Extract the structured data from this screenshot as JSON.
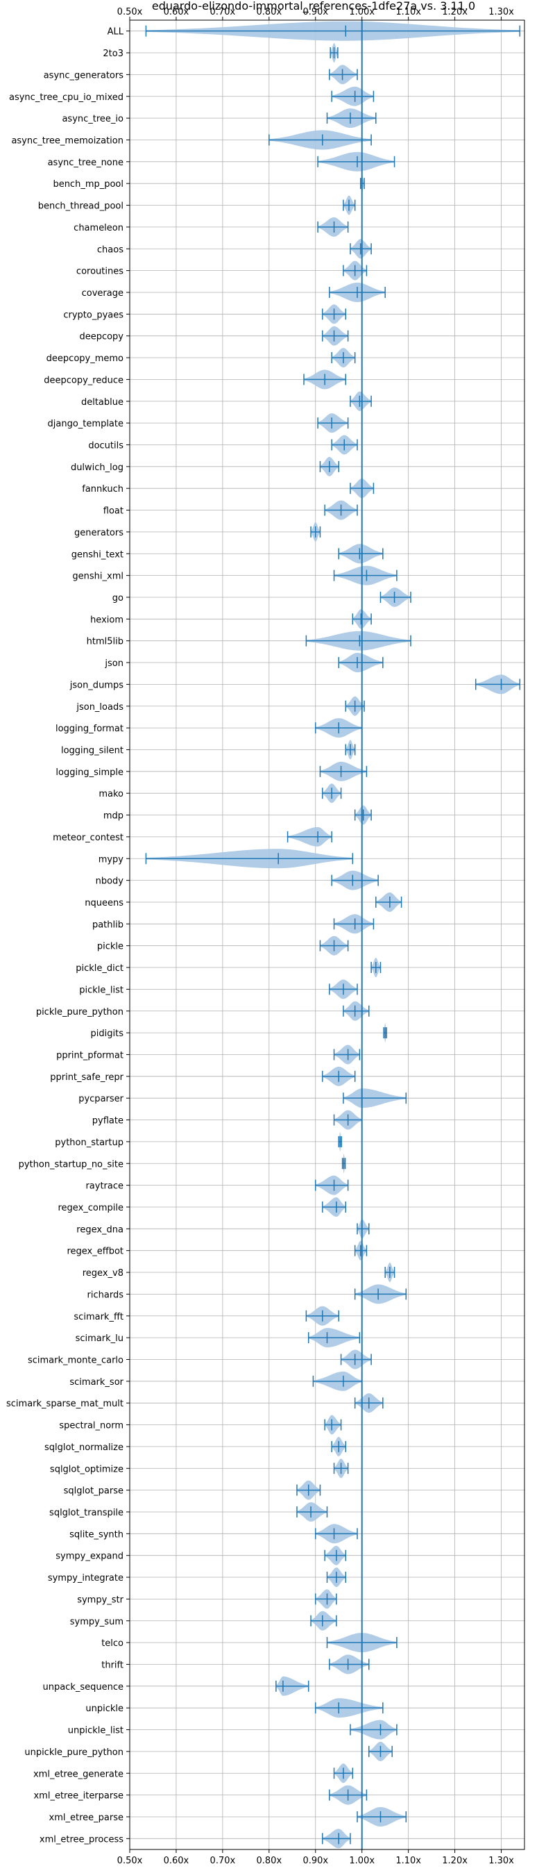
{
  "chart_data": {
    "type": "violin",
    "title": "eduardo-elizondo-immortal_references-1dfe27a vs. 3.11.0",
    "xlabel": "",
    "ylabel": "",
    "xlim": [
      0.5,
      1.35
    ],
    "x_ticks": [
      0.5,
      0.6,
      0.7,
      0.8,
      0.9,
      1.0,
      1.1,
      1.2,
      1.3
    ],
    "x_tick_labels": [
      "0.50x",
      "0.60x",
      "0.70x",
      "0.80x",
      "0.90x",
      "1.00x",
      "1.10x",
      "1.20x",
      "1.30x"
    ],
    "reference_line": 1.0,
    "grid": true,
    "colors": {
      "violin_fill": "#a7c6e3",
      "whisker": "#1f77b4",
      "reference_line": "#1f77b4",
      "grid": "#b0b0b0"
    },
    "series": [
      {
        "name": "ALL",
        "min": 0.535,
        "max": 1.34,
        "median": 0.965
      },
      {
        "name": "2to3",
        "min": 0.932,
        "max": 0.948,
        "median": 0.94
      },
      {
        "name": "async_generators",
        "min": 0.93,
        "max": 0.99,
        "median": 0.958
      },
      {
        "name": "async_tree_cpu_io_mixed",
        "min": 0.935,
        "max": 1.025,
        "median": 0.985
      },
      {
        "name": "async_tree_io",
        "min": 0.925,
        "max": 1.03,
        "median": 0.975
      },
      {
        "name": "async_tree_memoization",
        "min": 0.8,
        "max": 1.02,
        "median": 0.915
      },
      {
        "name": "async_tree_none",
        "min": 0.905,
        "max": 1.07,
        "median": 0.99
      },
      {
        "name": "bench_mp_pool",
        "min": 0.997,
        "max": 1.005,
        "median": 1.0
      },
      {
        "name": "bench_thread_pool",
        "min": 0.96,
        "max": 0.985,
        "median": 0.972
      },
      {
        "name": "chameleon",
        "min": 0.905,
        "max": 0.97,
        "median": 0.94
      },
      {
        "name": "chaos",
        "min": 0.975,
        "max": 1.02,
        "median": 0.997
      },
      {
        "name": "coroutines",
        "min": 0.96,
        "max": 1.01,
        "median": 0.985
      },
      {
        "name": "coverage",
        "min": 0.93,
        "max": 1.05,
        "median": 0.99
      },
      {
        "name": "crypto_pyaes",
        "min": 0.915,
        "max": 0.965,
        "median": 0.94
      },
      {
        "name": "deepcopy",
        "min": 0.915,
        "max": 0.97,
        "median": 0.94
      },
      {
        "name": "deepcopy_memo",
        "min": 0.935,
        "max": 0.985,
        "median": 0.96
      },
      {
        "name": "deepcopy_reduce",
        "min": 0.875,
        "max": 0.965,
        "median": 0.92
      },
      {
        "name": "deltablue",
        "min": 0.975,
        "max": 1.02,
        "median": 0.995
      },
      {
        "name": "django_template",
        "min": 0.905,
        "max": 0.97,
        "median": 0.935
      },
      {
        "name": "docutils",
        "min": 0.935,
        "max": 0.99,
        "median": 0.962
      },
      {
        "name": "dulwich_log",
        "min": 0.91,
        "max": 0.95,
        "median": 0.93
      },
      {
        "name": "fannkuch",
        "min": 0.975,
        "max": 1.025,
        "median": 1.0
      },
      {
        "name": "float",
        "min": 0.92,
        "max": 0.99,
        "median": 0.955
      },
      {
        "name": "generators",
        "min": 0.89,
        "max": 0.91,
        "median": 0.9
      },
      {
        "name": "genshi_text",
        "min": 0.95,
        "max": 1.045,
        "median": 0.995
      },
      {
        "name": "genshi_xml",
        "min": 0.94,
        "max": 1.075,
        "median": 1.01
      },
      {
        "name": "go",
        "min": 1.04,
        "max": 1.105,
        "median": 1.07
      },
      {
        "name": "hexiom",
        "min": 0.98,
        "max": 1.02,
        "median": 0.998
      },
      {
        "name": "html5lib",
        "min": 0.88,
        "max": 1.105,
        "median": 0.995
      },
      {
        "name": "json",
        "min": 0.95,
        "max": 1.045,
        "median": 0.99
      },
      {
        "name": "json_dumps",
        "min": 1.245,
        "max": 1.34,
        "median": 1.3
      },
      {
        "name": "json_loads",
        "min": 0.965,
        "max": 1.005,
        "median": 0.985
      },
      {
        "name": "logging_format",
        "min": 0.9,
        "max": 1.0,
        "median": 0.95
      },
      {
        "name": "logging_silent",
        "min": 0.965,
        "max": 0.985,
        "median": 0.975
      },
      {
        "name": "logging_simple",
        "min": 0.91,
        "max": 1.01,
        "median": 0.955
      },
      {
        "name": "mako",
        "min": 0.915,
        "max": 0.955,
        "median": 0.935
      },
      {
        "name": "mdp",
        "min": 0.985,
        "max": 1.02,
        "median": 1.003
      },
      {
        "name": "meteor_contest",
        "min": 0.84,
        "max": 0.935,
        "median": 0.905
      },
      {
        "name": "mypy",
        "min": 0.535,
        "max": 0.98,
        "median": 0.82
      },
      {
        "name": "nbody",
        "min": 0.935,
        "max": 1.035,
        "median": 0.98
      },
      {
        "name": "nqueens",
        "min": 1.03,
        "max": 1.085,
        "median": 1.06
      },
      {
        "name": "pathlib",
        "min": 0.94,
        "max": 1.025,
        "median": 0.985
      },
      {
        "name": "pickle",
        "min": 0.91,
        "max": 0.97,
        "median": 0.94
      },
      {
        "name": "pickle_dict",
        "min": 1.02,
        "max": 1.04,
        "median": 1.03
      },
      {
        "name": "pickle_list",
        "min": 0.93,
        "max": 0.99,
        "median": 0.96
      },
      {
        "name": "pickle_pure_python",
        "min": 0.96,
        "max": 1.015,
        "median": 0.985
      },
      {
        "name": "pidigits",
        "min": 1.047,
        "max": 1.053,
        "median": 1.05
      },
      {
        "name": "pprint_pformat",
        "min": 0.94,
        "max": 0.995,
        "median": 0.97
      },
      {
        "name": "pprint_safe_repr",
        "min": 0.915,
        "max": 0.985,
        "median": 0.95
      },
      {
        "name": "pycparser",
        "min": 0.96,
        "max": 1.095,
        "median": 1.0
      },
      {
        "name": "pyflate",
        "min": 0.94,
        "max": 1.0,
        "median": 0.97
      },
      {
        "name": "python_startup",
        "min": 0.95,
        "max": 0.956,
        "median": 0.953
      },
      {
        "name": "python_startup_no_site",
        "min": 0.958,
        "max": 0.964,
        "median": 0.961
      },
      {
        "name": "raytrace",
        "min": 0.9,
        "max": 0.97,
        "median": 0.94
      },
      {
        "name": "regex_compile",
        "min": 0.915,
        "max": 0.965,
        "median": 0.945
      },
      {
        "name": "regex_dna",
        "min": 0.99,
        "max": 1.015,
        "median": 1.0
      },
      {
        "name": "regex_effbot",
        "min": 0.985,
        "max": 1.01,
        "median": 0.997
      },
      {
        "name": "regex_v8",
        "min": 1.05,
        "max": 1.07,
        "median": 1.06
      },
      {
        "name": "richards",
        "min": 0.985,
        "max": 1.095,
        "median": 1.035
      },
      {
        "name": "scimark_fft",
        "min": 0.88,
        "max": 0.95,
        "median": 0.915
      },
      {
        "name": "scimark_lu",
        "min": 0.885,
        "max": 0.995,
        "median": 0.925
      },
      {
        "name": "scimark_monte_carlo",
        "min": 0.955,
        "max": 1.02,
        "median": 0.985
      },
      {
        "name": "scimark_sor",
        "min": 0.895,
        "max": 1.0,
        "median": 0.96
      },
      {
        "name": "scimark_sparse_mat_mult",
        "min": 0.985,
        "max": 1.045,
        "median": 1.015
      },
      {
        "name": "spectral_norm",
        "min": 0.92,
        "max": 0.955,
        "median": 0.935
      },
      {
        "name": "sqlglot_normalize",
        "min": 0.935,
        "max": 0.965,
        "median": 0.95
      },
      {
        "name": "sqlglot_optimize",
        "min": 0.94,
        "max": 0.97,
        "median": 0.955
      },
      {
        "name": "sqlglot_parse",
        "min": 0.86,
        "max": 0.91,
        "median": 0.885
      },
      {
        "name": "sqlglot_transpile",
        "min": 0.86,
        "max": 0.925,
        "median": 0.89
      },
      {
        "name": "sqlite_synth",
        "min": 0.9,
        "max": 0.99,
        "median": 0.94
      },
      {
        "name": "sympy_expand",
        "min": 0.92,
        "max": 0.965,
        "median": 0.945
      },
      {
        "name": "sympy_integrate",
        "min": 0.925,
        "max": 0.965,
        "median": 0.945
      },
      {
        "name": "sympy_str",
        "min": 0.9,
        "max": 0.945,
        "median": 0.925
      },
      {
        "name": "sympy_sum",
        "min": 0.89,
        "max": 0.945,
        "median": 0.915
      },
      {
        "name": "telco",
        "min": 0.925,
        "max": 1.075,
        "median": 1.0
      },
      {
        "name": "thrift",
        "min": 0.93,
        "max": 1.015,
        "median": 0.97
      },
      {
        "name": "unpack_sequence",
        "min": 0.815,
        "max": 0.885,
        "median": 0.83
      },
      {
        "name": "unpickle",
        "min": 0.9,
        "max": 1.045,
        "median": 0.95
      },
      {
        "name": "unpickle_list",
        "min": 0.975,
        "max": 1.075,
        "median": 1.04
      },
      {
        "name": "unpickle_pure_python",
        "min": 1.015,
        "max": 1.065,
        "median": 1.04
      },
      {
        "name": "xml_etree_generate",
        "min": 0.94,
        "max": 0.98,
        "median": 0.96
      },
      {
        "name": "xml_etree_iterparse",
        "min": 0.93,
        "max": 1.01,
        "median": 0.97
      },
      {
        "name": "xml_etree_parse",
        "min": 0.99,
        "max": 1.095,
        "median": 1.04
      },
      {
        "name": "xml_etree_process",
        "min": 0.915,
        "max": 0.975,
        "median": 0.95
      }
    ]
  }
}
